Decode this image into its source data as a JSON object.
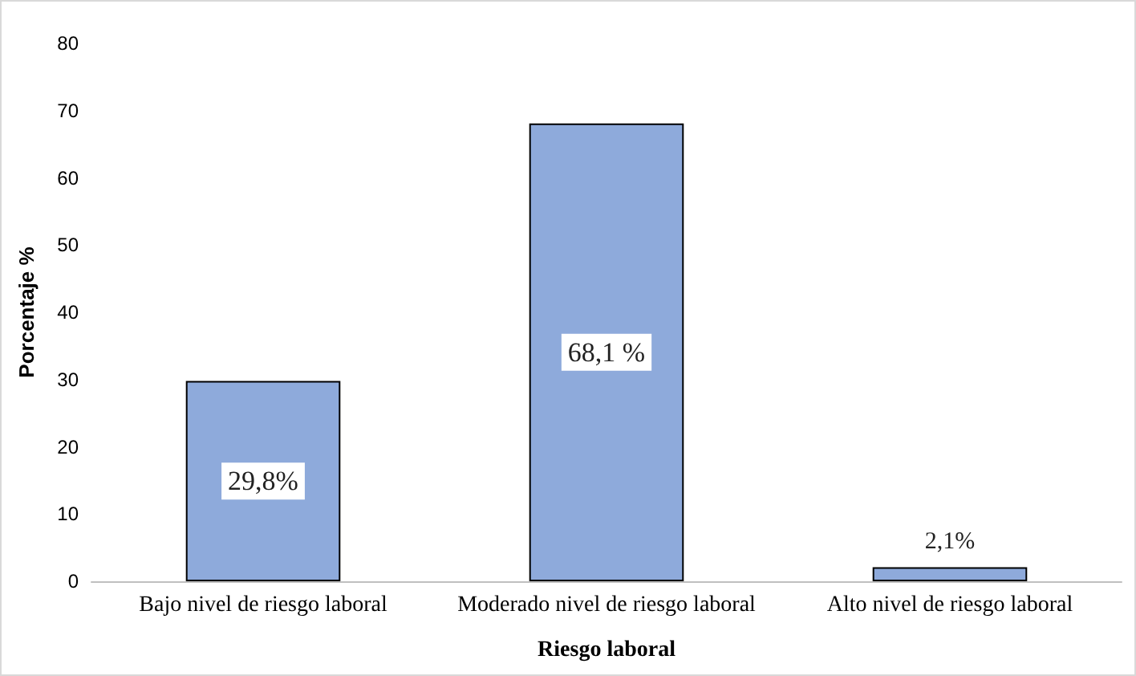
{
  "chart_data": {
    "type": "bar",
    "xlabel": "Riesgo laboral",
    "ylabel": "Porcentaje %",
    "categories": [
      "Bajo nivel de riesgo laboral",
      "Moderado nivel de riesgo laboral",
      "Alto nivel de riesgo laboral"
    ],
    "values": [
      29.8,
      68.1,
      2.1
    ],
    "value_labels": [
      "29,8%",
      "68,1 %",
      "2,1%"
    ],
    "color": "#8eaadb",
    "ylim": [
      0,
      80
    ],
    "yticks": [
      0,
      10,
      20,
      30,
      40,
      50,
      60,
      70,
      80
    ],
    "grid": false
  }
}
